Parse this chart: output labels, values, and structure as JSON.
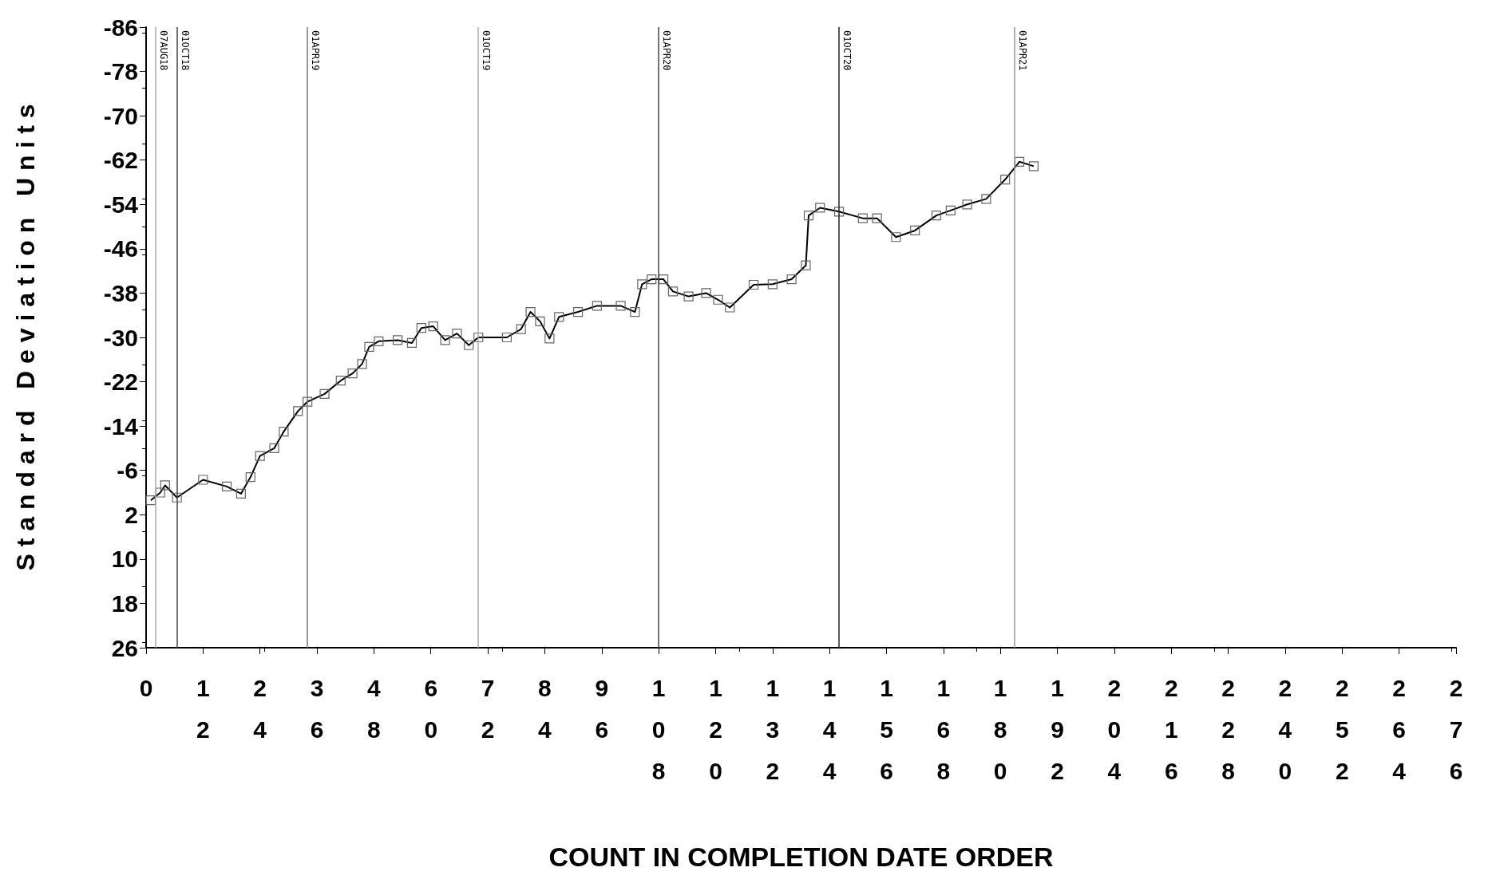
{
  "chart_data": {
    "type": "line",
    "xlabel": "COUNT IN COMPLETION DATE ORDER",
    "ylabel": "S t a n d a r d   D e v i a t i o n   U n i t s",
    "xlim": [
      0,
      276
    ],
    "xticks": [
      0,
      12,
      24,
      36,
      48,
      60,
      72,
      84,
      96,
      108,
      120,
      132,
      144,
      156,
      168,
      180,
      192,
      204,
      216,
      228,
      240,
      252,
      264,
      276
    ],
    "ylim": [
      26,
      -86
    ],
    "yticks": [
      26,
      18,
      10,
      2,
      -6,
      -14,
      -22,
      -30,
      -38,
      -46,
      -54,
      -62,
      -70,
      -78,
      -86
    ],
    "marker": "square",
    "line_style": "solid",
    "grid": false,
    "series": [
      {
        "color": "#000000",
        "x": [
          1,
          3,
          4,
          6.5,
          12,
          17,
          20,
          22,
          24,
          27,
          29,
          32,
          34,
          37.6,
          41,
          43.5,
          45.5,
          47,
          49,
          53,
          56,
          58,
          60.5,
          63,
          65.5,
          68,
          70,
          76,
          79,
          81,
          83,
          85,
          87,
          91,
          95,
          100,
          103,
          104.5,
          106.5,
          109,
          111,
          114.3,
          118,
          120.5,
          123,
          128,
          132,
          136,
          139,
          139.6,
          142,
          146,
          151,
          154,
          158,
          162,
          166.5,
          169.5,
          173,
          177,
          181,
          184,
          187
        ],
        "values": [
          -0.6,
          -2,
          -3.3,
          -1.1,
          -4.3,
          -3.1,
          -1.8,
          -4.8,
          -8.6,
          -10,
          -13,
          -16.7,
          -18.4,
          -19.8,
          -22.2,
          -23.5,
          -25.2,
          -28.3,
          -29.3,
          -29.5,
          -29,
          -31.7,
          -32,
          -29.5,
          -30.7,
          -28.6,
          -30,
          -30,
          -31.5,
          -34.6,
          -32.9,
          -29.8,
          -33.7,
          -34.6,
          -35.7,
          -35.7,
          -34.6,
          -39.6,
          -40.5,
          -40.5,
          -38.3,
          -37.4,
          -38,
          -36.8,
          -35.4,
          -39.5,
          -39.6,
          -40.5,
          -43,
          -52,
          -53.4,
          -52.7,
          -51.5,
          -51.5,
          -48.1,
          -49.3,
          -52,
          -52.9,
          -54,
          -55,
          -58.5,
          -61.7,
          -60.9
        ]
      }
    ],
    "ref_lines": [
      {
        "axis": "x",
        "value": 2,
        "label": "07AUG18",
        "color": "#aaaaaa"
      },
      {
        "axis": "x",
        "value": 6.5,
        "label": "01OCT18",
        "color": "#444444"
      },
      {
        "axis": "x",
        "value": 34,
        "label": "01APR19",
        "color": "#777777"
      },
      {
        "axis": "x",
        "value": 70,
        "label": "01OCT19",
        "color": "#aaaaaa"
      },
      {
        "axis": "x",
        "value": 108,
        "label": "01APR20",
        "color": "#444444"
      },
      {
        "axis": "x",
        "value": 146,
        "label": "01OCT20",
        "color": "#222222"
      },
      {
        "axis": "x",
        "value": 183,
        "label": "01APR21",
        "color": "#999999"
      }
    ]
  }
}
